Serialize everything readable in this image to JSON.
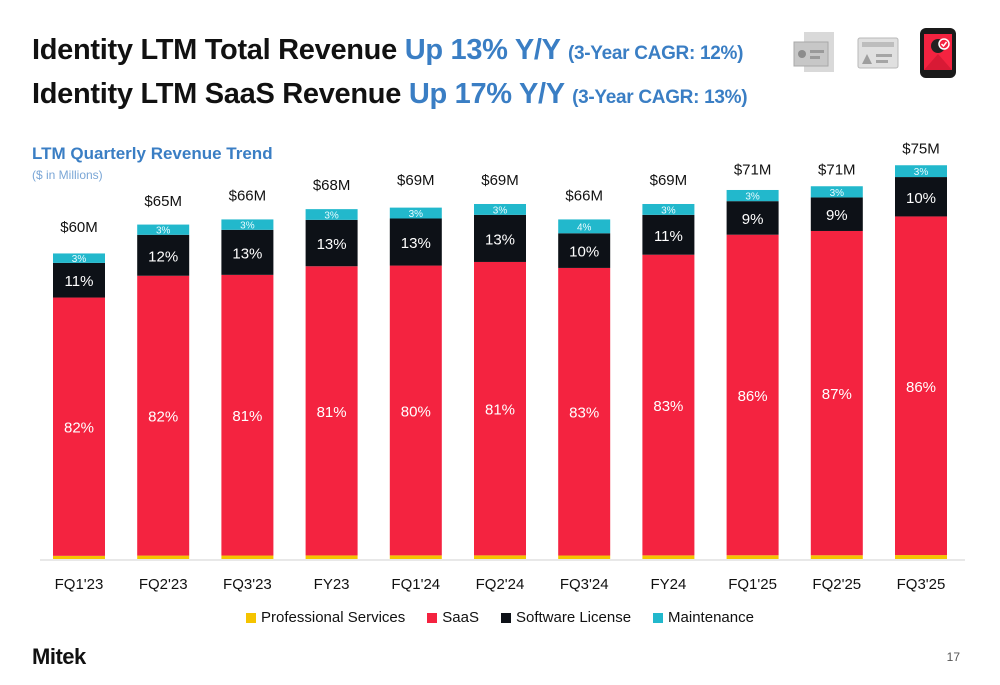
{
  "header": {
    "line1_prefix": "Identity LTM Total Revenue ",
    "line1_highlight": "Up 13% Y/Y",
    "line1_cagr": "(3-Year CAGR: 12%)",
    "line2_prefix": "Identity LTM SaaS Revenue ",
    "line2_highlight": "Up 17% Y/Y",
    "line2_cagr": "(3-Year CAGR: 13%)"
  },
  "icons": [
    "check-document-icon",
    "id-card-icon",
    "mobile-identity-icon"
  ],
  "footer": {
    "logo": "Mitek",
    "page_number": "17"
  },
  "chart_data": {
    "type": "bar",
    "stacked": true,
    "title": "LTM Quarterly Revenue Trend",
    "subtitle": "($ in Millions)",
    "categories": [
      "FQ1'23",
      "FQ2'23",
      "FQ3'23",
      "FY23",
      "FQ1'24",
      "FQ2'24",
      "FQ3'24",
      "FY24",
      "FQ1'25",
      "FQ2'25",
      "FQ3'25"
    ],
    "totals": [
      60,
      65,
      66,
      68,
      69,
      69,
      66,
      69,
      71,
      71,
      75
    ],
    "total_labels": [
      "$60M",
      "$65M",
      "$66M",
      "$68M",
      "$69M",
      "$69M",
      "$66M",
      "$69M",
      "$71M",
      "$71M",
      "$75M"
    ],
    "series": [
      {
        "name": "Professional Services",
        "color": "#f5c400",
        "pct": [
          1,
          1,
          1,
          1,
          1,
          1,
          1,
          1,
          1,
          1,
          1
        ],
        "labels": [
          "",
          "",
          "",
          "",
          "",
          "",
          "",
          "",
          "",
          "",
          ""
        ]
      },
      {
        "name": "SaaS",
        "color": "#f42340",
        "pct": [
          82,
          82,
          81,
          81,
          80,
          81,
          83,
          83,
          86,
          87,
          86
        ],
        "labels": [
          "82%",
          "82%",
          "81%",
          "81%",
          "80%",
          "81%",
          "83%",
          "83%",
          "86%",
          "87%",
          "86%"
        ]
      },
      {
        "name": "Software License",
        "color": "#0d1117",
        "pct": [
          11,
          12,
          13,
          13,
          13,
          13,
          10,
          11,
          9,
          9,
          10
        ],
        "labels": [
          "11%",
          "12%",
          "13%",
          "13%",
          "13%",
          "13%",
          "10%",
          "11%",
          "9%",
          "9%",
          "10%"
        ]
      },
      {
        "name": "Maintenance",
        "color": "#22b8cc",
        "pct": [
          3,
          3,
          3,
          3,
          3,
          3,
          4,
          3,
          3,
          3,
          3
        ],
        "labels": [
          "3%",
          "3%",
          "3%",
          "3%",
          "3%",
          "3%",
          "4%",
          "3%",
          "3%",
          "3%",
          "3%"
        ]
      }
    ]
  }
}
